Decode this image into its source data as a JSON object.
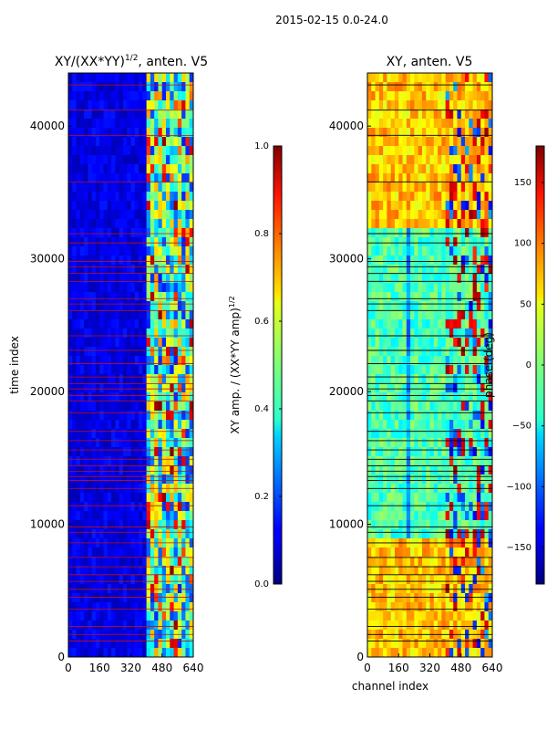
{
  "figure_title": "2015-02-15 0.0-24.0",
  "chart_data": [
    {
      "type": "heatmap",
      "title_base": "XY/(XX*YY)",
      "title_exp": "1/2",
      "title_suffix": ", anten. V5",
      "xlabel": "",
      "ylabel": "time index",
      "xlim": [
        0,
        640
      ],
      "ylim": [
        0,
        44000
      ],
      "x_ticks": [
        0,
        160,
        320,
        480,
        640
      ],
      "y_ticks": [
        0,
        10000,
        20000,
        30000,
        40000
      ],
      "x_tick_labels": [
        "0",
        "160",
        "320",
        "480",
        "640"
      ],
      "y_tick_labels": [
        "0",
        "10000",
        "20000",
        "30000",
        "40000"
      ],
      "colorbar": {
        "label_base": "XY amp. / (XX*YY amp)",
        "label_exp": "1/2",
        "range": [
          0.0,
          1.0
        ],
        "ticks": [
          0.0,
          0.2,
          0.4,
          0.6,
          0.8,
          1.0
        ],
        "tick_labels": [
          "0.0",
          "0.2",
          "0.4",
          "0.6",
          "0.8",
          "1.0"
        ],
        "colormap": "jet"
      },
      "bright_channel_range": [
        400,
        640
      ],
      "flag_line_color": "#c01010"
    },
    {
      "type": "heatmap",
      "title": "XY, anten. V5",
      "xlabel": "channel index",
      "ylabel": "",
      "xlim": [
        0,
        640
      ],
      "ylim": [
        0,
        44000
      ],
      "x_ticks": [
        0,
        160,
        320,
        480,
        640
      ],
      "y_ticks": [
        0,
        10000,
        20000,
        30000,
        40000
      ],
      "x_tick_labels": [
        "0",
        "160",
        "320",
        "480",
        "640"
      ],
      "y_tick_labels": [
        "0",
        "10000",
        "20000",
        "30000",
        "40000"
      ],
      "colorbar": {
        "label": "phase (deg)",
        "range": [
          -180,
          180
        ],
        "ticks": [
          -150,
          -100,
          -50,
          0,
          50,
          100,
          150
        ],
        "tick_labels": [
          "−150",
          "−100",
          "−50",
          "0",
          "50",
          "100",
          "150"
        ],
        "colormap": "jet"
      },
      "flag_line_color": "#000000"
    }
  ],
  "flag_rows": [
    1200,
    1700,
    2300,
    3600,
    4500,
    5100,
    5700,
    6200,
    6800,
    7500,
    8600,
    9400,
    9800,
    11400,
    12700,
    13300,
    13600,
    14000,
    14400,
    14900,
    15600,
    16300,
    17000,
    18400,
    19300,
    19700,
    20200,
    20600,
    21100,
    22100,
    23100,
    24200,
    26100,
    26600,
    27000,
    28300,
    28900,
    29400,
    29800,
    31200,
    31900,
    35800,
    39300,
    41200,
    43100
  ]
}
